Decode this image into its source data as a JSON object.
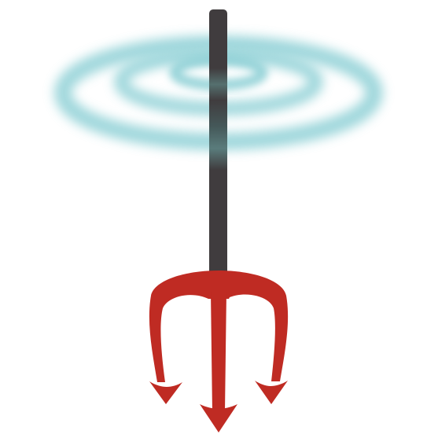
{
  "illustration": {
    "subject": "trident-icon",
    "colors": {
      "background": "#ffffff",
      "pole": "#403c3e",
      "trident": "#bf2b23",
      "ripples": "#8fd0d6"
    }
  }
}
